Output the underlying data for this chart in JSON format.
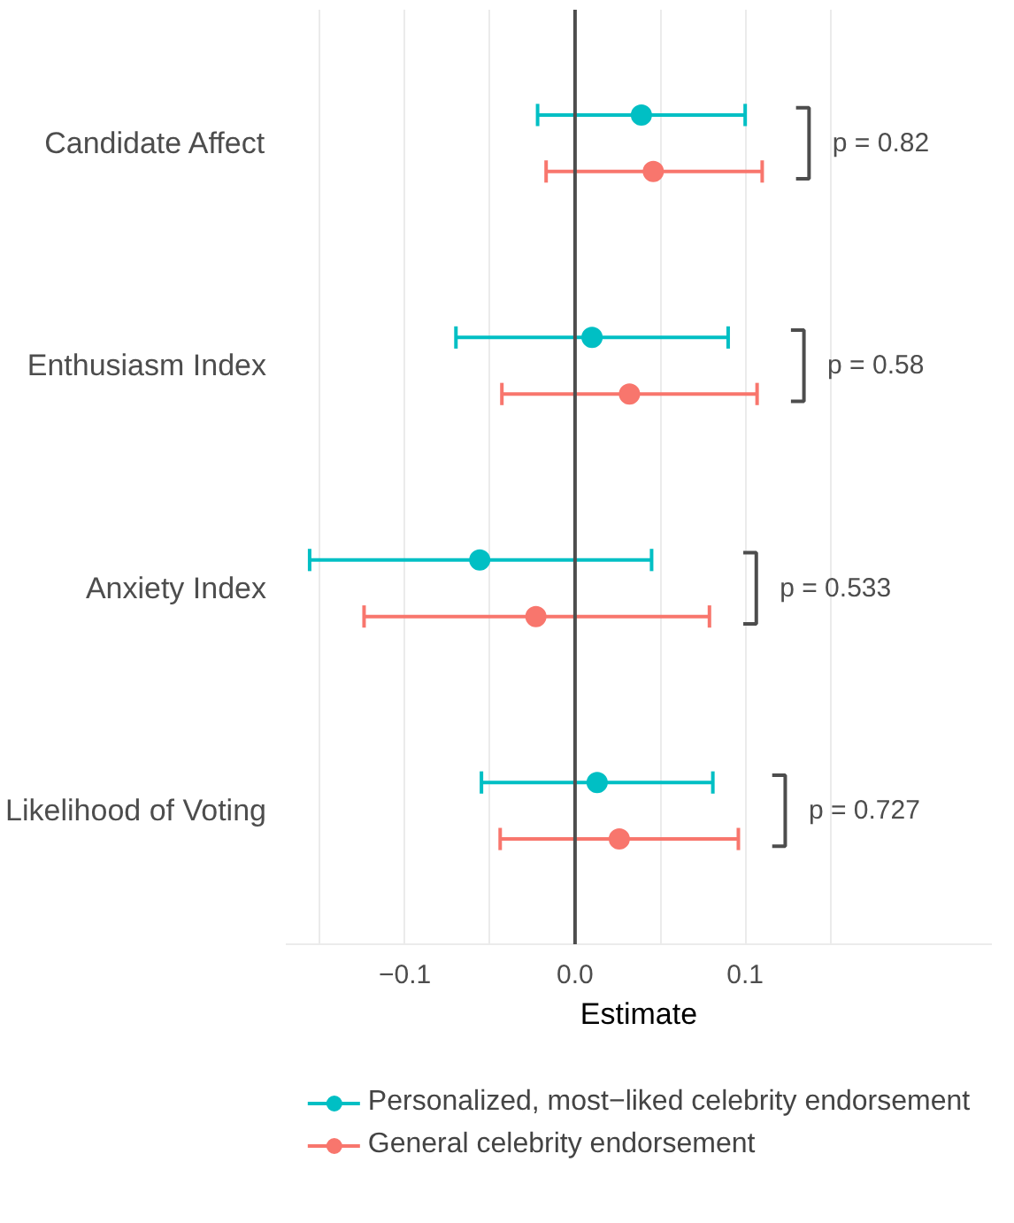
{
  "chart_data": {
    "type": "scatter",
    "xlabel": "Estimate",
    "categories": [
      "Candidate Affect",
      "Enthusiasm Index",
      "Anxiety Index",
      "Likelihood of Voting"
    ],
    "orientation": "horizontal",
    "series": [
      {
        "name": "Personalized, most−liked celebrity endorsement",
        "color": "#00bfc4",
        "values": [
          0.039,
          0.01,
          -0.056,
          0.013
        ],
        "errors": [
          [
            -0.022,
            0.1
          ],
          [
            -0.07,
            0.09
          ],
          [
            -0.156,
            0.045
          ],
          [
            -0.055,
            0.081
          ]
        ]
      },
      {
        "name": "General celebrity endorsement",
        "color": "#f8766d",
        "values": [
          0.046,
          0.032,
          -0.023,
          0.026
        ],
        "errors": [
          [
            -0.017,
            0.11
          ],
          [
            -0.043,
            0.107
          ],
          [
            -0.124,
            0.079
          ],
          [
            -0.044,
            0.096
          ]
        ]
      }
    ],
    "xlim": [
      -0.17,
      0.245
    ],
    "xticks": [
      {
        "value": -0.15,
        "label": null
      },
      {
        "value": -0.1,
        "label": "−0.1"
      },
      {
        "value": -0.05,
        "label": null
      },
      {
        "value": 0,
        "label": "0.0"
      },
      {
        "value": 0.05,
        "label": null
      },
      0.1,
      {
        "value": 0.15,
        "label": null
      }
    ],
    "ref_lines": [
      {
        "axis": "x",
        "value": 0,
        "color": "#4d4d4d"
      }
    ],
    "annotations": [
      "p = 0.82",
      "p = 0.58",
      "p = 0.533",
      "p = 0.727"
    ],
    "grid": "x",
    "legend": "bottom",
    "marker": "circle"
  }
}
